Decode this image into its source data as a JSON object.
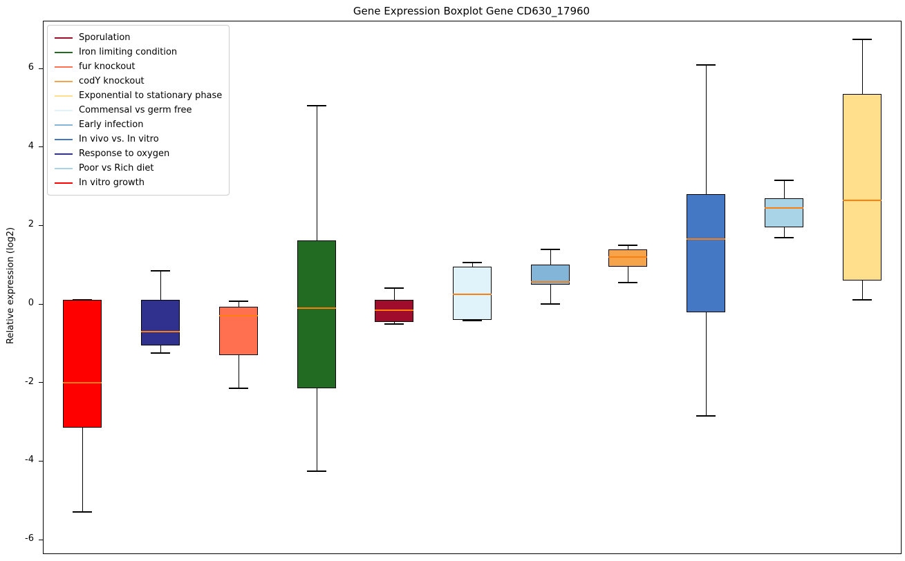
{
  "chart_data": {
    "type": "boxplot",
    "title": "Gene Expression Boxplot Gene CD630_17960",
    "ylabel": "Relative expression (log2)",
    "ylim": [
      -6.35,
      7.2
    ],
    "yticks": [
      -6,
      -4,
      -2,
      0,
      2,
      4,
      6
    ],
    "grid": false,
    "legend_position": "upper left",
    "median_color": "#ff7f0e",
    "whisker_color": "#000000",
    "series": [
      {
        "label": "In vitro growth",
        "color": "#ff0000",
        "whisker_low": -5.3,
        "q1": -3.15,
        "median": -2.0,
        "q3": 0.1,
        "whisker_high": 0.1
      },
      {
        "label": "Response to oxygen",
        "color": "#30308f",
        "whisker_low": -1.25,
        "q1": -1.05,
        "median": -0.7,
        "q3": 0.1,
        "whisker_high": 0.85
      },
      {
        "label": "fur knockout",
        "color": "#ff7050",
        "whisker_low": -2.15,
        "q1": -1.3,
        "median": -0.3,
        "q3": -0.07,
        "whisker_high": 0.07
      },
      {
        "label": "Iron limiting condition",
        "color": "#226b22",
        "whisker_low": -4.25,
        "q1": -2.15,
        "median": -0.1,
        "q3": 1.62,
        "whisker_high": 5.05
      },
      {
        "label": "Sporulation",
        "color": "#a00d2c",
        "whisker_low": -0.5,
        "q1": -0.45,
        "median": -0.15,
        "q3": 0.1,
        "whisker_high": 0.4
      },
      {
        "label": "Commensal vs germ free",
        "color": "#e0f3fa",
        "whisker_low": -0.42,
        "q1": -0.4,
        "median": 0.25,
        "q3": 0.95,
        "whisker_high": 1.05
      },
      {
        "label": "Early infection",
        "color": "#82b5d8",
        "whisker_low": 0.0,
        "q1": 0.5,
        "median": 0.57,
        "q3": 1.0,
        "whisker_high": 1.4
      },
      {
        "label": "codY knockout",
        "color": "#f5a44c",
        "whisker_low": 0.55,
        "q1": 0.95,
        "median": 1.2,
        "q3": 1.4,
        "whisker_high": 1.5
      },
      {
        "label": "In vivo vs. In vitro",
        "color": "#4478c4",
        "whisker_low": -2.85,
        "q1": -0.2,
        "median": 1.65,
        "q3": 2.8,
        "whisker_high": 6.1
      },
      {
        "label": "Poor vs Rich diet",
        "color": "#a9d4e8",
        "whisker_low": 1.7,
        "q1": 1.95,
        "median": 2.45,
        "q3": 2.7,
        "whisker_high": 3.15
      },
      {
        "label": "Exponential to stationary phase",
        "color": "#ffdf8c",
        "whisker_low": 0.1,
        "q1": 0.6,
        "median": 2.65,
        "q3": 5.35,
        "whisker_high": 6.75
      }
    ],
    "legend_labels": [
      "Sporulation",
      "Iron limiting condition",
      "fur knockout",
      "codY knockout",
      "Exponential to stationary phase",
      "Commensal vs germ free",
      "Early infection",
      "In vivo vs. In vitro",
      "Response to oxygen",
      "Poor vs Rich diet",
      "In vitro growth"
    ]
  }
}
